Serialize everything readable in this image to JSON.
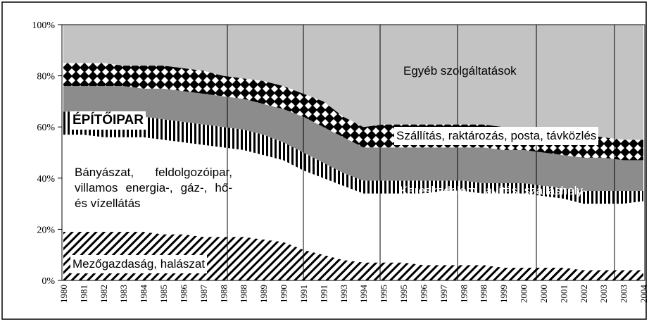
{
  "chart_data": {
    "type": "area",
    "stacked": true,
    "categories": [
      "1980",
      "1981",
      "1982",
      "1983",
      "1984",
      "1985",
      "1986",
      "1987",
      "1988",
      "1988",
      "1989",
      "1990",
      "1991",
      "1991",
      "1993",
      "1994",
      "1995",
      "1995",
      "1996",
      "1997",
      "1998",
      "1998",
      "1999",
      "2000",
      "2000",
      "2001",
      "2002",
      "2003",
      "2003",
      "2004"
    ],
    "ylim": [
      0,
      100
    ],
    "yticks": [
      {
        "value": 0,
        "label": "0%"
      },
      {
        "value": 20,
        "label": "20%"
      },
      {
        "value": 40,
        "label": "40%"
      },
      {
        "value": 60,
        "label": "60%"
      },
      {
        "value": 80,
        "label": "80%"
      },
      {
        "value": 100,
        "label": "100%"
      }
    ],
    "series": [
      {
        "name": "Mezőgazdaság, halászat",
        "color": "#000000",
        "pattern": "diagonal",
        "values": [
          19,
          19,
          19,
          19,
          19,
          18,
          18,
          17,
          17,
          17,
          16,
          15,
          12,
          10,
          8,
          7,
          7,
          7,
          6,
          6,
          6,
          6,
          5,
          5,
          5,
          5,
          4,
          4,
          4,
          4
        ]
      },
      {
        "name": "Bányászat, feldolgozóipar, villamos energia-, gáz-, hő- és vízellátás",
        "color": "#ffffff",
        "pattern": "solid",
        "values": [
          38,
          38,
          37,
          37,
          37,
          37,
          36,
          36,
          35,
          34,
          33,
          32,
          31,
          30,
          29,
          27,
          27,
          27,
          28,
          29,
          29,
          28,
          29,
          29,
          28,
          27,
          26,
          26,
          26,
          27
        ]
      },
      {
        "name": "ÉPÍTŐIPAR",
        "color": "#000000",
        "pattern": "vertical",
        "values": [
          9,
          9,
          9,
          9,
          8,
          8,
          8,
          8,
          8,
          8,
          8,
          7,
          7,
          6,
          5,
          5,
          5,
          5,
          5,
          4,
          4,
          4,
          4,
          4,
          4,
          4,
          5,
          5,
          5,
          4
        ]
      },
      {
        "name": "Kereskedelem, javítás, szálláshely-szolgáltatás",
        "color": "#8c8c8c",
        "pattern": "solid",
        "values": [
          10,
          10,
          11,
          11,
          11,
          12,
          12,
          12,
          12,
          12,
          12,
          13,
          14,
          14,
          14,
          13,
          13,
          13,
          13,
          13,
          13,
          14,
          13,
          13,
          13,
          13,
          13,
          13,
          12,
          12
        ]
      },
      {
        "name": "Szállítás, raktározás, posta, távközlés",
        "color": "#000000",
        "pattern": "checker",
        "values": [
          9,
          9,
          9,
          8,
          9,
          9,
          9,
          9,
          8,
          8,
          9,
          9,
          9,
          10,
          8,
          8,
          9,
          9,
          9,
          9,
          9,
          9,
          9,
          9,
          9,
          9,
          9,
          8,
          8,
          8
        ]
      },
      {
        "name": "Egyéb szolgáltatások",
        "color": "#c3c3c3",
        "pattern": "solid",
        "values": [
          15,
          15,
          15,
          16,
          16,
          16,
          17,
          18,
          20,
          21,
          22,
          24,
          27,
          30,
          36,
          40,
          39,
          39,
          39,
          39,
          39,
          39,
          40,
          40,
          41,
          42,
          43,
          44,
          45,
          45
        ]
      }
    ]
  }
}
